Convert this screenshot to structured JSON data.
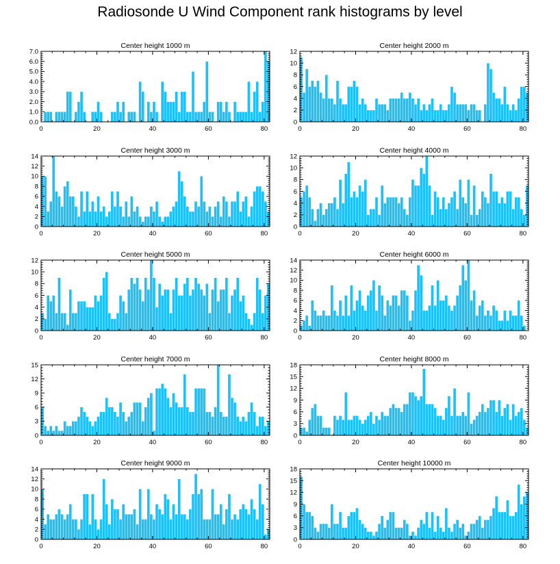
{
  "title": "Radiosonde U Wind Component rank histograms by level",
  "chart_data": [
    {
      "type": "bar",
      "title": "Center height 1000 m",
      "ylim": [
        0,
        7
      ],
      "yticks": [
        "0.0",
        "1.0",
        "2.0",
        "3.0",
        "4.0",
        "5.0",
        "6.0",
        "7.0"
      ],
      "xticks": [
        "0",
        "20",
        "40",
        "60",
        "80"
      ],
      "xlim": [
        0,
        82
      ],
      "values": [
        0,
        1,
        1,
        1,
        0,
        1,
        1,
        1,
        1,
        3,
        3,
        0,
        1,
        2,
        3,
        1,
        0,
        0,
        1,
        1,
        2,
        1,
        0,
        0,
        0,
        1,
        1,
        2,
        1,
        2,
        0,
        1,
        1,
        1,
        0,
        4,
        3,
        0,
        2,
        1,
        2,
        1,
        0,
        4,
        3,
        2,
        2,
        2,
        3,
        1,
        3,
        3,
        1,
        1,
        5,
        1,
        1,
        1,
        2,
        6,
        1,
        1,
        0,
        2,
        2,
        1,
        2,
        1,
        0,
        2,
        1,
        1,
        1,
        1,
        4,
        1,
        3,
        4,
        1,
        2,
        7,
        6
      ]
    },
    {
      "type": "bar",
      "title": "Center height 2000 m",
      "ylim": [
        0,
        12
      ],
      "yticks": [
        "0",
        "2",
        "4",
        "6",
        "8",
        "10",
        "12"
      ],
      "xticks": [
        "0",
        "20",
        "40",
        "60",
        "80"
      ],
      "xlim": [
        0,
        82
      ],
      "values": [
        11,
        5,
        9,
        6,
        7,
        6,
        7,
        5,
        4,
        8,
        4,
        4,
        3,
        7,
        4,
        3,
        3,
        6,
        6,
        7,
        6,
        3,
        4,
        3,
        2,
        2,
        2,
        4,
        3,
        3,
        3,
        2,
        4,
        4,
        4,
        4,
        5,
        4,
        4,
        5,
        4,
        3,
        4,
        2,
        3,
        2,
        3,
        4,
        2,
        2,
        3,
        2,
        2,
        3,
        6,
        5,
        3,
        3,
        3,
        3,
        2,
        3,
        3,
        2,
        2,
        0,
        3,
        10,
        9,
        5,
        4,
        4,
        3,
        6,
        3,
        2,
        3,
        2,
        4,
        6,
        6,
        5
      ]
    },
    {
      "type": "bar",
      "title": "Center height 3000 m",
      "ylim": [
        0,
        14
      ],
      "yticks": [
        "0",
        "2",
        "4",
        "6",
        "8",
        "10",
        "12",
        "14"
      ],
      "xticks": [
        "0",
        "20",
        "40",
        "60",
        "80"
      ],
      "xlim": [
        0,
        82
      ],
      "values": [
        10,
        10,
        3,
        5,
        14,
        7,
        6,
        4,
        8,
        9,
        6,
        6,
        4,
        2,
        7,
        3,
        7,
        3,
        5,
        3,
        6,
        3,
        4,
        2,
        3,
        7,
        4,
        7,
        4,
        2,
        5,
        2,
        6,
        3,
        4,
        2,
        1,
        2,
        2,
        4,
        3,
        5,
        2,
        1,
        2,
        2,
        3,
        4,
        5,
        11,
        9,
        6,
        4,
        3,
        3,
        5,
        4,
        10,
        5,
        3,
        4,
        2,
        4,
        5,
        2,
        6,
        5,
        2,
        5,
        5,
        7,
        3,
        5,
        6,
        2,
        4,
        7,
        8,
        8,
        7,
        5,
        3
      ]
    },
    {
      "type": "bar",
      "title": "Center height 4000 m",
      "ylim": [
        0,
        12
      ],
      "yticks": [
        "0",
        "2",
        "4",
        "6",
        "8",
        "10",
        "12"
      ],
      "xticks": [
        "0",
        "20",
        "40",
        "60",
        "80"
      ],
      "xlim": [
        0,
        82
      ],
      "values": [
        5,
        6,
        7,
        5,
        3,
        1,
        3,
        4,
        2,
        3,
        4,
        4,
        5,
        3,
        8,
        4,
        9,
        11,
        5,
        6,
        5,
        7,
        6,
        8,
        2,
        3,
        3,
        5,
        2,
        7,
        4,
        5,
        5,
        5,
        5,
        4,
        5,
        3,
        2,
        5,
        8,
        7,
        7,
        10,
        9,
        12,
        7,
        2,
        6,
        5,
        3,
        5,
        3,
        4,
        5,
        6,
        3,
        8,
        5,
        4,
        8,
        2,
        7,
        2,
        3,
        6,
        5,
        4,
        9,
        6,
        6,
        4,
        5,
        4,
        6,
        6,
        3,
        5,
        5,
        3,
        2,
        7
      ]
    },
    {
      "type": "bar",
      "title": "Center height 5000 m",
      "ylim": [
        0,
        12
      ],
      "yticks": [
        "0",
        "2",
        "4",
        "6",
        "8",
        "10",
        "12"
      ],
      "xticks": [
        "0",
        "20",
        "40",
        "60",
        "80"
      ],
      "xlim": [
        0,
        82
      ],
      "values": [
        3,
        2,
        6,
        5,
        6,
        3,
        9,
        3,
        3,
        1,
        7,
        3,
        3,
        5,
        5,
        5,
        4,
        4,
        4,
        6,
        5,
        6,
        9,
        10,
        3,
        2,
        2,
        3,
        6,
        5,
        3,
        7,
        9,
        8,
        9,
        7,
        5,
        9,
        7,
        12,
        9,
        4,
        8,
        6,
        7,
        7,
        3,
        7,
        9,
        6,
        6,
        8,
        9,
        6,
        7,
        9,
        8,
        7,
        6,
        8,
        3,
        7,
        9,
        5,
        7,
        7,
        9,
        3,
        6,
        7,
        9,
        5,
        6,
        3,
        2,
        1,
        3,
        9,
        7,
        3,
        6,
        8
      ]
    },
    {
      "type": "bar",
      "title": "Center height 6000 m",
      "ylim": [
        0,
        14
      ],
      "yticks": [
        "0",
        "2",
        "4",
        "6",
        "8",
        "10",
        "12",
        "14"
      ],
      "xticks": [
        "0",
        "20",
        "40",
        "60",
        "80"
      ],
      "xlim": [
        0,
        82
      ],
      "values": [
        1,
        2,
        3,
        1,
        6,
        4,
        3,
        3,
        4,
        3,
        3,
        9,
        4,
        3,
        6,
        3,
        7,
        3,
        9,
        4,
        6,
        8,
        5,
        4,
        7,
        8,
        10,
        4,
        9,
        7,
        3,
        6,
        5,
        7,
        7,
        5,
        8,
        8,
        7,
        2,
        4,
        8,
        13,
        11,
        4,
        4,
        5,
        9,
        5,
        10,
        6,
        6,
        7,
        5,
        4,
        5,
        7,
        9,
        13,
        10,
        14,
        6,
        8,
        3,
        5,
        6,
        3,
        4,
        3,
        5,
        4,
        2,
        2,
        4,
        2,
        4,
        3,
        3,
        6,
        3,
        1,
        0
      ]
    },
    {
      "type": "bar",
      "title": "Center height 7000 m",
      "ylim": [
        0,
        15
      ],
      "yticks": [
        "0",
        "3",
        "6",
        "9",
        "12",
        "15"
      ],
      "xticks": [
        "0",
        "20",
        "40",
        "60",
        "80"
      ],
      "xlim": [
        0,
        82
      ],
      "values": [
        6,
        2,
        1,
        2,
        1,
        2,
        1,
        1,
        3,
        2,
        2,
        3,
        3,
        4,
        6,
        5,
        4,
        3,
        2,
        3,
        4,
        5,
        5,
        8,
        6,
        6,
        5,
        4,
        7,
        5,
        3,
        4,
        5,
        7,
        7,
        7,
        3,
        6,
        8,
        9,
        1,
        10,
        10,
        11,
        10,
        8,
        6,
        9,
        7,
        6,
        6,
        13,
        6,
        5,
        5,
        10,
        10,
        10,
        10,
        5,
        5,
        4,
        6,
        15,
        5,
        4,
        4,
        13,
        8,
        7,
        4,
        3,
        4,
        3,
        5,
        7,
        5,
        2,
        4,
        4,
        2,
        3
      ]
    },
    {
      "type": "bar",
      "title": "Center height 8000 m",
      "ylim": [
        0,
        18
      ],
      "yticks": [
        "0",
        "3",
        "6",
        "9",
        "12",
        "15",
        "18"
      ],
      "xticks": [
        "0",
        "20",
        "40",
        "60",
        "80"
      ],
      "xlim": [
        0,
        82
      ],
      "values": [
        2,
        2,
        1,
        4,
        7,
        8,
        5,
        5,
        2,
        2,
        2,
        0,
        5,
        4,
        5,
        4,
        11,
        4,
        4,
        5,
        5,
        4,
        3,
        4,
        5,
        6,
        3,
        5,
        4,
        6,
        5,
        5,
        7,
        8,
        7,
        7,
        6,
        8,
        8,
        11,
        11,
        10,
        9,
        10,
        17,
        8,
        8,
        8,
        7,
        5,
        5,
        4,
        7,
        10,
        5,
        12,
        5,
        5,
        6,
        5,
        11,
        3,
        4,
        5,
        6,
        8,
        6,
        7,
        9,
        9,
        6,
        9,
        5,
        7,
        8,
        4,
        8,
        5,
        6,
        7,
        4,
        2
      ]
    },
    {
      "type": "bar",
      "title": "Center height 9000 m",
      "ylim": [
        0,
        14
      ],
      "yticks": [
        "0",
        "2",
        "4",
        "6",
        "8",
        "10",
        "12",
        "14"
      ],
      "xticks": [
        "0",
        "20",
        "40",
        "60",
        "80"
      ],
      "xlim": [
        0,
        82
      ],
      "values": [
        10,
        3,
        5,
        4,
        4,
        5,
        6,
        5,
        4,
        5,
        7,
        4,
        4,
        2,
        4,
        9,
        9,
        3,
        9,
        4,
        2,
        4,
        12,
        7,
        3,
        8,
        6,
        6,
        4,
        7,
        5,
        5,
        5,
        6,
        3,
        10,
        4,
        4,
        10,
        5,
        4,
        7,
        6,
        5,
        9,
        8,
        4,
        7,
        5,
        12,
        5,
        5,
        4,
        6,
        9,
        13,
        9,
        10,
        4,
        4,
        4,
        10,
        5,
        5,
        7,
        3,
        6,
        9,
        4,
        5,
        4,
        6,
        7,
        6,
        5,
        8,
        6,
        4,
        11,
        7,
        1,
        2
      ]
    },
    {
      "type": "bar",
      "title": "Center height 10000 m",
      "ylim": [
        0,
        18
      ],
      "yticks": [
        "0",
        "3",
        "6",
        "9",
        "12",
        "15",
        "18"
      ],
      "xticks": [
        "0",
        "20",
        "40",
        "60",
        "80"
      ],
      "xlim": [
        0,
        82
      ],
      "values": [
        16,
        9,
        7,
        7,
        6,
        3,
        2,
        4,
        4,
        4,
        3,
        9,
        4,
        4,
        7,
        3,
        3,
        6,
        7,
        7,
        8,
        5,
        4,
        3,
        2,
        2,
        1,
        2,
        4,
        6,
        3,
        5,
        7,
        7,
        3,
        3,
        3,
        5,
        4,
        1,
        2,
        1,
        3,
        5,
        4,
        7,
        3,
        7,
        2,
        6,
        3,
        2,
        8,
        3,
        2,
        4,
        5,
        3,
        4,
        1,
        2,
        4,
        4,
        5,
        6,
        3,
        5,
        5,
        6,
        8,
        11,
        7,
        7,
        7,
        10,
        6,
        6,
        7,
        14,
        9,
        11,
        12
      ]
    }
  ]
}
